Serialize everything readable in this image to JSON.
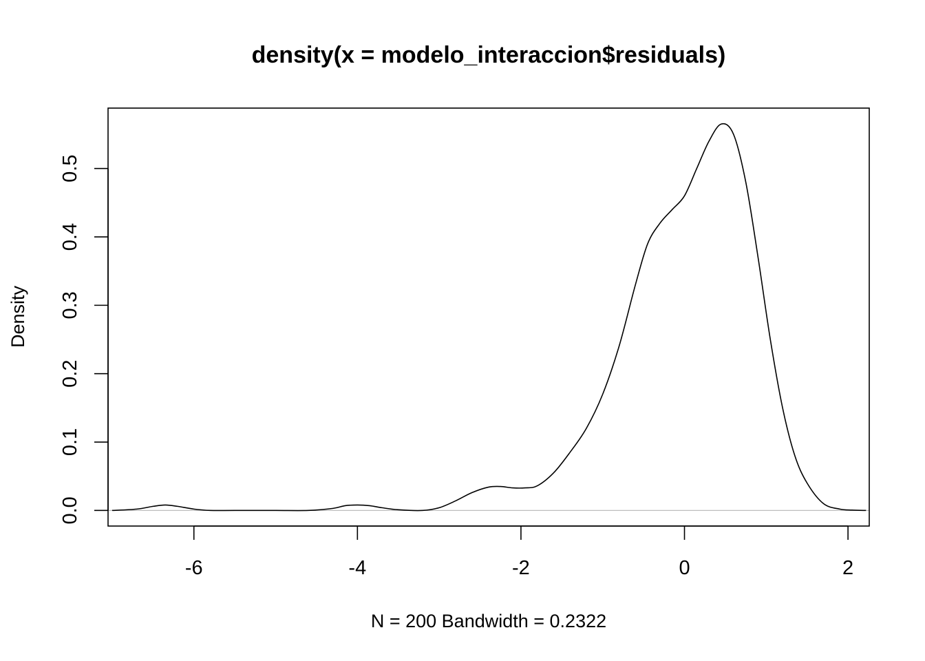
{
  "chart_data": {
    "type": "line",
    "title": "density(x = modelo_interaccion$residuals)",
    "xlabel": "N = 200   Bandwidth = 0.2322",
    "ylabel": "Density",
    "xlim": [
      -7.05,
      2.26
    ],
    "ylim": [
      -0.0228,
      0.5883
    ],
    "x_ticks": [
      -6,
      -4,
      -2,
      0,
      2
    ],
    "x_tick_labels": [
      "-6",
      "-4",
      "-2",
      "0",
      "2"
    ],
    "y_ticks": [
      0.0,
      0.1,
      0.2,
      0.3,
      0.4,
      0.5
    ],
    "y_tick_labels": [
      "0.0",
      "0.1",
      "0.2",
      "0.3",
      "0.4",
      "0.5"
    ],
    "baseline": 0,
    "baseline_color": "#bebebe",
    "line_color": "#000000",
    "grid": false,
    "legend": "none",
    "series": [
      {
        "x": [
          -7.0,
          -6.7,
          -6.5,
          -6.35,
          -6.2,
          -6.0,
          -5.8,
          -5.5,
          -5.0,
          -4.6,
          -4.3,
          -4.15,
          -4.0,
          -3.85,
          -3.7,
          -3.5,
          -3.2,
          -3.0,
          -2.8,
          -2.6,
          -2.4,
          -2.25,
          -2.1,
          -1.95,
          -1.8,
          -1.6,
          -1.4,
          -1.2,
          -1.0,
          -0.8,
          -0.6,
          -0.45,
          -0.3,
          -0.15,
          0.0,
          0.15,
          0.3,
          0.45,
          0.6,
          0.75,
          0.9,
          1.05,
          1.2,
          1.35,
          1.5,
          1.7,
          1.9,
          2.05,
          2.22
        ],
        "y": [
          0.0,
          0.002,
          0.006,
          0.008,
          0.006,
          0.002,
          0.0,
          0.0,
          0.0,
          0.0,
          0.003,
          0.007,
          0.008,
          0.007,
          0.004,
          0.001,
          0.0,
          0.004,
          0.014,
          0.026,
          0.034,
          0.035,
          0.033,
          0.033,
          0.036,
          0.055,
          0.085,
          0.12,
          0.17,
          0.24,
          0.33,
          0.39,
          0.42,
          0.44,
          0.46,
          0.5,
          0.54,
          0.565,
          0.55,
          0.48,
          0.37,
          0.25,
          0.15,
          0.08,
          0.04,
          0.01,
          0.002,
          0.0005,
          0.0
        ]
      }
    ]
  }
}
